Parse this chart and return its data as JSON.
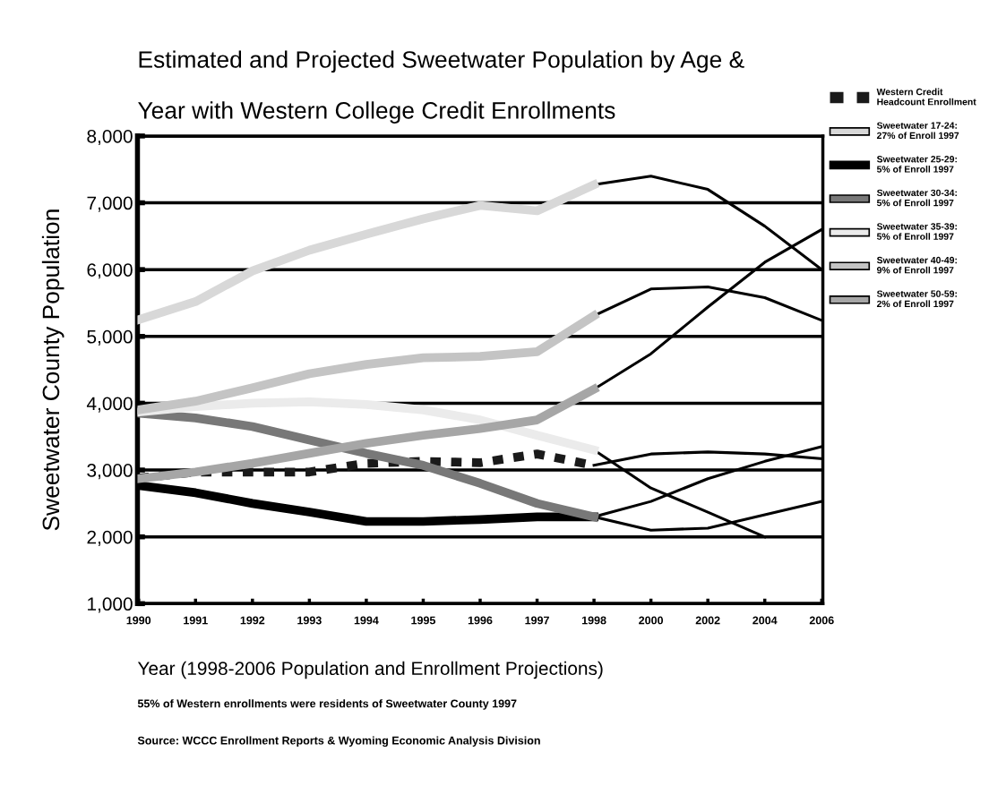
{
  "chart_data": {
    "type": "line",
    "title": "Estimated and Projected Sweetwater Population by Age &\n\nYear with Western College Credit Enrollments",
    "xlabel": "Year (1998-2006 Population and Enrollment Projections)",
    "ylabel": "Sweetwater County Population",
    "annotations": [
      "55% of Western enrollments were residents of Sweetwater County 1997",
      "Source: WCCC Enrollment Reports & Wyoming Economic Analysis Division"
    ],
    "categories": [
      "1990",
      "1991",
      "1992",
      "1993",
      "1994",
      "1995",
      "1996",
      "1997",
      "1998",
      "2000",
      "2002",
      "2004",
      "2006"
    ],
    "ylim": [
      1000,
      8000
    ],
    "yticks": [
      {
        "value": 1000,
        "label": "1,000"
      },
      {
        "value": 2000,
        "label": "2,000"
      },
      {
        "value": 3000,
        "label": "3,000"
      },
      {
        "value": 4000,
        "label": "4,000"
      },
      {
        "value": 5000,
        "label": "5,000"
      },
      {
        "value": 6000,
        "label": "6,000"
      },
      {
        "value": 7000,
        "label": "7,000"
      },
      {
        "value": 8000,
        "label": "8,000"
      }
    ],
    "grid": "y",
    "legend": "right",
    "marker": "none",
    "series": [
      {
        "name": "Western Credit\nHeadcount Enrollment",
        "color": "#1a1a1a",
        "line_style": "dashed",
        "values": [
          2880,
          2970,
          2970,
          2970,
          3100,
          3130,
          3110,
          3240,
          3070,
          null,
          null,
          null,
          null
        ]
      },
      {
        "name": "Sweetwater 17-24:\n27% of Enroll 1997",
        "color": "#d8d8d8",
        "values": [
          5250,
          5520,
          5980,
          6290,
          6530,
          6760,
          6960,
          6880,
          7270,
          null,
          null,
          null,
          null
        ]
      },
      {
        "name": "Sweetwater 25-29:\n5% of Enroll 1997",
        "color": "#000000",
        "values": [
          2770,
          2660,
          2500,
          2370,
          2230,
          2230,
          2260,
          2300,
          2300,
          null,
          null,
          null,
          null
        ]
      },
      {
        "name": "Sweetwater 30-34:\n5% of Enroll 1997",
        "color": "#787878",
        "values": [
          3850,
          3780,
          3650,
          3450,
          3250,
          3070,
          2800,
          2500,
          2300,
          null,
          null,
          null,
          null
        ]
      },
      {
        "name": "Sweetwater 35-39:\n5% of Enroll 1997",
        "color": "#ebebeb",
        "values": [
          3870,
          3950,
          4000,
          4020,
          3980,
          3900,
          3750,
          3520,
          3300,
          null,
          null,
          null,
          null
        ]
      },
      {
        "name": "Sweetwater 40-49:\n9% of Enroll 1997",
        "color": "#c4c4c4",
        "values": [
          3900,
          4030,
          4230,
          4440,
          4580,
          4680,
          4700,
          4770,
          5310,
          null,
          null,
          null,
          null
        ]
      },
      {
        "name": "Sweetwater 50-59:\n2% of Enroll 1997",
        "color": "#a6a6a6",
        "values": [
          2870,
          2970,
          3100,
          3250,
          3400,
          3520,
          3620,
          3750,
          4210,
          null,
          null,
          null,
          null
        ]
      },
      {
        "color": "#000000",
        "values": [
          null,
          null,
          null,
          null,
          null,
          null,
          null,
          null,
          3070,
          3240,
          3270,
          3240,
          3170
        ]
      },
      {
        "color": "#000000",
        "values": [
          null,
          null,
          null,
          null,
          null,
          null,
          null,
          null,
          7270,
          7400,
          7200,
          6650,
          6000
        ]
      },
      {
        "color": "#000000",
        "values": [
          null,
          null,
          null,
          null,
          null,
          null,
          null,
          null,
          2300,
          2530,
          2870,
          3130,
          3350
        ]
      },
      {
        "color": "#000000",
        "values": [
          null,
          null,
          null,
          null,
          null,
          null,
          null,
          null,
          2300,
          2100,
          2130,
          2330,
          2530
        ]
      },
      {
        "color": "#000000",
        "values": [
          null,
          null,
          null,
          null,
          null,
          null,
          null,
          null,
          3300,
          2730,
          2370,
          2000,
          null
        ]
      },
      {
        "color": "#000000",
        "values": [
          null,
          null,
          null,
          null,
          null,
          null,
          null,
          null,
          5310,
          5710,
          5740,
          5580,
          5240
        ]
      },
      {
        "color": "#000000",
        "values": [
          null,
          null,
          null,
          null,
          null,
          null,
          null,
          null,
          4210,
          4740,
          5440,
          6110,
          6600
        ]
      }
    ]
  }
}
